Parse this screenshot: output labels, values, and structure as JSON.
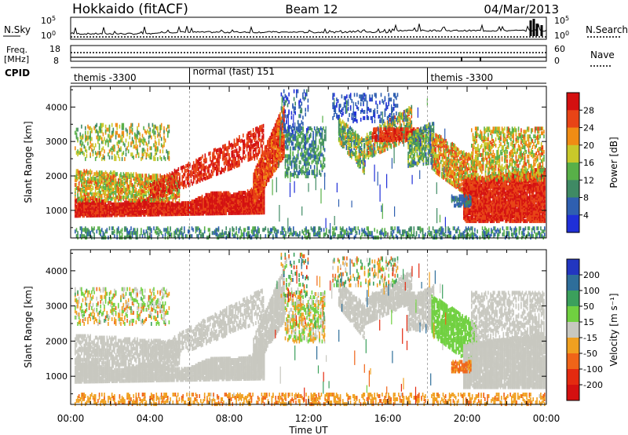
{
  "header": {
    "radar": "Hokkaido (fitACF)",
    "beam": "Beam 12",
    "date": "04/Mar/2013"
  },
  "top_panels": {
    "nsky_label": "N.Sky",
    "nsearch_label": "N.Search",
    "noise_ticks_left": [
      "10^5",
      "10^0"
    ],
    "noise_ticks_right": [
      "10^5",
      "10^0"
    ],
    "freq_label_1": "Freq.",
    "freq_label_2": "[MHz]",
    "freq_ticks": [
      "18",
      "8"
    ],
    "nave_label": "Nave",
    "nave_ticks": [
      "60",
      "0"
    ],
    "cpid_label": "CPID",
    "cpid_segments": [
      {
        "label": "themis -3300",
        "start_hour": 0,
        "end_hour": 6
      },
      {
        "label": "normal (fast) 151",
        "start_hour": 6,
        "end_hour": 18
      },
      {
        "label": "themis -3300",
        "start_hour": 18,
        "end_hour": 24
      }
    ]
  },
  "chart_data": [
    {
      "type": "heatmap",
      "name": "power",
      "ylabel": "Slant Range [km]",
      "yticks": [
        "1000",
        "2000",
        "3000",
        "4000"
      ],
      "ylim": [
        200,
        4600
      ],
      "colorbar": {
        "label": "Power [dB]",
        "ticks": [
          "4",
          "8",
          "12",
          "16",
          "20",
          "24",
          "28"
        ],
        "colors": [
          "#1f2fd8",
          "#2f5fb0",
          "#3f8a64",
          "#58b048",
          "#c8c82a",
          "#f08c14",
          "#e84416",
          "#d41010"
        ]
      }
    },
    {
      "type": "heatmap",
      "name": "velocity",
      "ylabel": "Slant Range [km]",
      "yticks": [
        "1000",
        "2000",
        "3000",
        "4000"
      ],
      "ylim": [
        200,
        4600
      ],
      "colorbar": {
        "label": "Velocity [m s⁻¹]",
        "ticks": [
          "200",
          "100",
          "50",
          "15",
          "-15",
          "-50",
          "-100",
          "-200"
        ],
        "colors": [
          "#2236c0",
          "#2e6e9a",
          "#3ba05c",
          "#70d040",
          "#c8c8c0",
          "#f0a020",
          "#f06418",
          "#e42a10",
          "#d41010"
        ]
      }
    }
  ],
  "x_axis": {
    "label": "Time UT",
    "ticks": [
      "00:00",
      "04:00",
      "08:00",
      "12:00",
      "16:00",
      "20:00",
      "00:00"
    ],
    "range_hours": [
      0,
      24
    ]
  }
}
